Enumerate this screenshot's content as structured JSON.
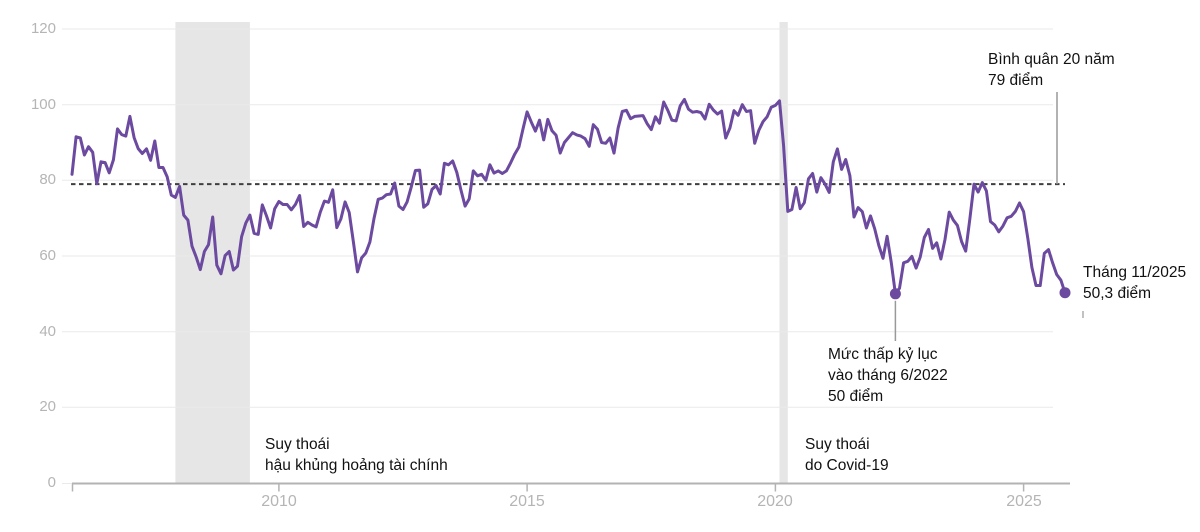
{
  "chart_data": {
    "type": "line",
    "unit": "điểm",
    "y_axis": {
      "ticks": [
        "0",
        "20",
        "40",
        "60",
        "80",
        "100",
        "120"
      ],
      "range": [
        0,
        120
      ],
      "grid": true
    },
    "x_axis": {
      "tick_years": [
        "2010",
        "2015",
        "2020",
        "2025"
      ],
      "start_month": "2005-11",
      "end_month": "2025-11"
    },
    "average_line": {
      "value": 79,
      "style": "dashed"
    },
    "start_month": "2005-11",
    "values": [
      81.6,
      91.5,
      91.2,
      86.7,
      88.9,
      87.4,
      79.1,
      84.9,
      84.7,
      82.0,
      85.4,
      93.6,
      92.1,
      91.7,
      96.9,
      91.3,
      88.4,
      87.1,
      88.3,
      85.3,
      90.4,
      83.4,
      83.4,
      80.9,
      76.1,
      75.5,
      78.4,
      70.8,
      69.5,
      62.6,
      59.8,
      56.4,
      61.2,
      63.0,
      70.3,
      57.6,
      55.3,
      60.1,
      61.2,
      56.3,
      57.3,
      65.1,
      68.7,
      70.8,
      66.0,
      65.7,
      73.5,
      70.6,
      67.4,
      72.5,
      74.4,
      73.6,
      73.6,
      72.2,
      73.6,
      76.0,
      67.8,
      68.9,
      68.2,
      67.7,
      71.6,
      74.5,
      74.2,
      77.5,
      67.5,
      69.8,
      74.3,
      71.5,
      63.7,
      55.8,
      59.5,
      60.8,
      63.7,
      69.9,
      75.0,
      75.3,
      76.2,
      76.4,
      79.3,
      73.2,
      72.3,
      74.3,
      78.3,
      82.6,
      82.7,
      72.9,
      73.8,
      77.6,
      78.6,
      76.4,
      84.5,
      84.1,
      85.1,
      82.1,
      77.5,
      73.2,
      75.1,
      82.5,
      81.2,
      81.6,
      80.0,
      84.1,
      81.9,
      82.5,
      81.8,
      82.5,
      84.6,
      86.9,
      88.8,
      93.6,
      98.1,
      95.4,
      93.0,
      95.9,
      90.7,
      96.1,
      93.1,
      91.9,
      87.2,
      90.0,
      91.3,
      92.6,
      92.0,
      91.7,
      91.0,
      89.0,
      94.7,
      93.5,
      90.0,
      89.8,
      91.2,
      87.2,
      93.8,
      98.2,
      98.5,
      96.3,
      96.9,
      97.0,
      97.1,
      95.0,
      93.4,
      96.8,
      95.1,
      100.7,
      98.5,
      95.9,
      95.7,
      99.7,
      101.4,
      98.8,
      98.0,
      98.2,
      97.9,
      96.2,
      100.1,
      98.6,
      97.5,
      98.3,
      91.2,
      93.8,
      98.4,
      97.2,
      100.0,
      98.2,
      98.4,
      89.8,
      93.2,
      95.5,
      96.8,
      99.3,
      99.8,
      101.0,
      89.1,
      71.8,
      72.3,
      78.1,
      72.5,
      74.1,
      80.4,
      81.8,
      76.9,
      80.7,
      79.0,
      76.8,
      84.9,
      88.3,
      82.9,
      85.5,
      81.2,
      70.3,
      72.8,
      71.7,
      67.4,
      70.6,
      67.2,
      62.8,
      59.4,
      65.2,
      58.4,
      50.0,
      51.5,
      58.2,
      58.6,
      59.9,
      56.8,
      59.7,
      64.9,
      67.0,
      62.0,
      63.5,
      59.2,
      64.4,
      71.6,
      69.5,
      68.1,
      63.8,
      61.3,
      69.7,
      79.0,
      76.9,
      79.4,
      77.2,
      69.1,
      68.2,
      66.4,
      67.9,
      70.1,
      70.5,
      71.8,
      74.0,
      71.7,
      64.7,
      57.0,
      52.2,
      52.2,
      60.7,
      61.7,
      58.2,
      55.1,
      53.6,
      50.3
    ],
    "recession_bands": [
      {
        "from": "2007-12",
        "to": "2009-06"
      },
      {
        "from": "2020-02",
        "to": "2020-04"
      }
    ],
    "markers": [
      {
        "month": "2022-06",
        "value": 50.0
      },
      {
        "month": "2025-11",
        "value": 50.3
      }
    ]
  },
  "annotations": {
    "average": {
      "lines": [
        "Bình quân 20 năm",
        "79 điểm"
      ]
    },
    "latest": {
      "lines": [
        "Tháng 11/2025",
        "50,3 điểm"
      ]
    },
    "record_low": {
      "lines": [
        "Mức thấp kỷ lục",
        "vào tháng 6/2022",
        "50 điểm"
      ]
    },
    "recession_financial": {
      "lines": [
        "Suy thoái",
        "hậu khủng hoảng tài chính"
      ]
    },
    "recession_covid": {
      "lines": [
        "Suy thoái",
        "do Covid-19"
      ]
    }
  },
  "colors": {
    "line": "#6b4a9f",
    "dot": "#6b4a9f",
    "band": "#e6e6e6",
    "grid": "#eaeaea",
    "axis": "#b3b3b3",
    "tick_label": "#b5b5b5",
    "dashed": "#3f3f3f",
    "annotation_line": "#999999",
    "text": "#111111"
  }
}
